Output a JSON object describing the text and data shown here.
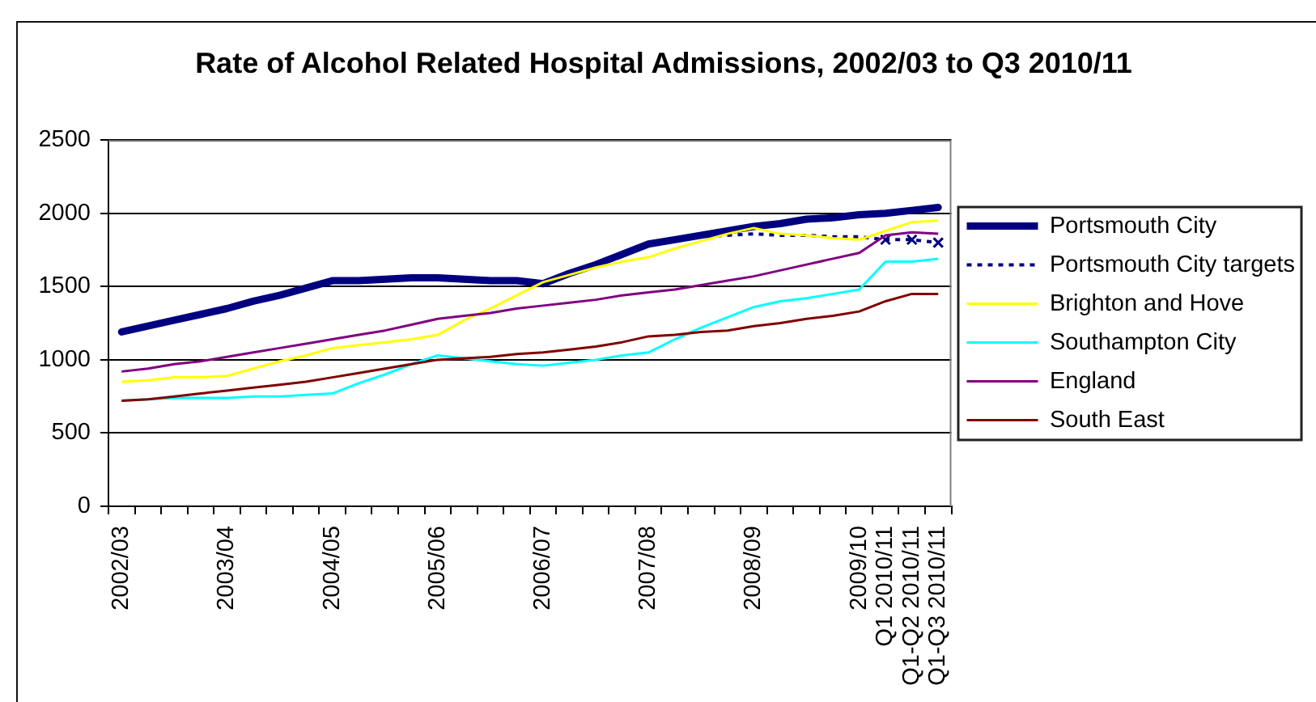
{
  "chart_data": {
    "type": "line",
    "title": "Rate of Alcohol Related Hospital Admissions, 2002/03 to Q3 2010/11",
    "categories": [
      "2002/03",
      null,
      null,
      null,
      "2003/04",
      null,
      null,
      null,
      "2004/05",
      null,
      null,
      null,
      "2005/06",
      null,
      null,
      null,
      "2006/07",
      null,
      null,
      null,
      "2007/08",
      null,
      null,
      null,
      "2008/09",
      null,
      null,
      null,
      "2009/10",
      "Q1 2010/11",
      "Q1-Q2 2010/11",
      "Q1-Q3 2010/11"
    ],
    "series": [
      {
        "name": "Portsmouth City",
        "color": "#000080",
        "values": [
          1190,
          1230,
          1270,
          1310,
          1350,
          1400,
          1440,
          1490,
          1540,
          1540,
          1550,
          1560,
          1560,
          1550,
          1540,
          1540,
          1520,
          1590,
          1650,
          1720,
          1790,
          1820,
          1850,
          1880,
          1910,
          1930,
          1960,
          1970,
          1990,
          2000,
          2020,
          2040
        ]
      },
      {
        "name": "Portsmouth City targets",
        "color": "#000080",
        "line_style": "dotted",
        "values": [
          null,
          null,
          null,
          null,
          null,
          null,
          null,
          null,
          null,
          null,
          null,
          null,
          null,
          null,
          null,
          null,
          null,
          null,
          null,
          null,
          null,
          1820,
          1840,
          1850,
          1860,
          1850,
          1850,
          1840,
          1840,
          1820,
          1820,
          1800
        ]
      },
      {
        "type": "scatter",
        "color": "#000080",
        "marker": "cross",
        "values": [
          null,
          null,
          null,
          null,
          null,
          null,
          null,
          null,
          null,
          null,
          null,
          null,
          null,
          null,
          null,
          null,
          null,
          null,
          null,
          null,
          null,
          null,
          null,
          null,
          null,
          null,
          null,
          null,
          null,
          1820,
          1820,
          1800
        ]
      },
      {
        "name": "Brighton and Hove",
        "color": "#ffff00",
        "values": [
          850,
          860,
          880,
          880,
          890,
          940,
          990,
          1030,
          1080,
          1100,
          1120,
          1140,
          1170,
          1270,
          1350,
          1440,
          1530,
          1580,
          1630,
          1670,
          1700,
          1760,
          1810,
          1860,
          1900,
          1860,
          1850,
          1830,
          1820,
          1880,
          1940,
          1950
        ]
      },
      {
        "name": "Southampton City",
        "color": "#00ffff",
        "values": [
          720,
          730,
          740,
          740,
          740,
          750,
          750,
          760,
          770,
          840,
          900,
          970,
          1030,
          1010,
          990,
          970,
          960,
          980,
          1000,
          1030,
          1050,
          1140,
          1220,
          1290,
          1360,
          1400,
          1420,
          1450,
          1480,
          1670,
          1670,
          1690
        ]
      },
      {
        "name": "England",
        "color": "#800080",
        "values": [
          920,
          940,
          970,
          990,
          1020,
          1050,
          1080,
          1110,
          1140,
          1170,
          1200,
          1240,
          1280,
          1300,
          1320,
          1350,
          1370,
          1390,
          1410,
          1440,
          1460,
          1480,
          1510,
          1540,
          1570,
          1610,
          1650,
          1690,
          1730,
          1850,
          1870,
          1860
        ]
      },
      {
        "name": "South East",
        "color": "#800000",
        "values": [
          720,
          730,
          750,
          770,
          790,
          810,
          830,
          850,
          880,
          910,
          940,
          970,
          1000,
          1010,
          1020,
          1040,
          1050,
          1070,
          1090,
          1120,
          1160,
          1170,
          1190,
          1200,
          1230,
          1250,
          1280,
          1300,
          1330,
          1400,
          1450,
          1450
        ]
      }
    ],
    "ylim": [
      0,
      2500
    ],
    "yticks": [
      0,
      500,
      1000,
      1500,
      2000,
      2500
    ],
    "grid": "y",
    "legend": "right"
  }
}
